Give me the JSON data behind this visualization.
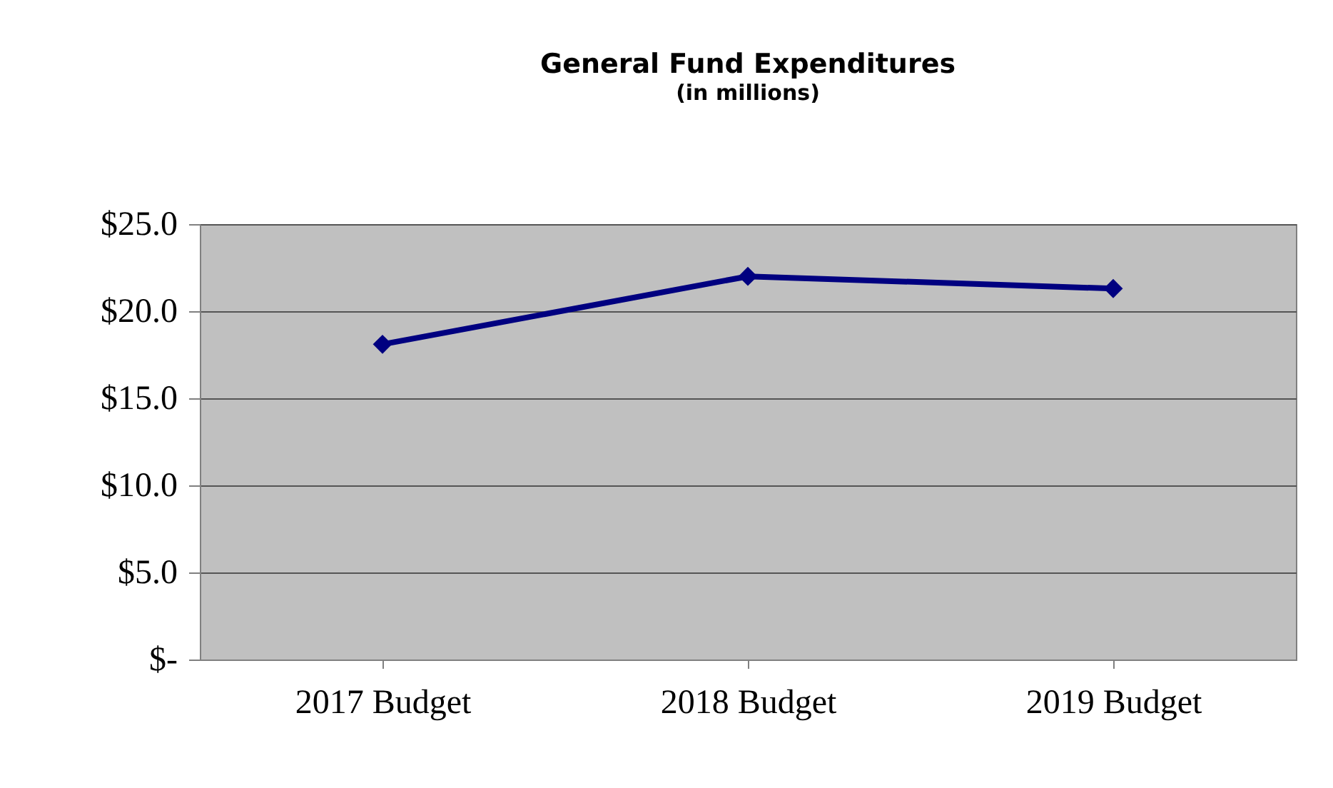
{
  "chart_data": {
    "type": "line",
    "title": "General Fund Expenditures",
    "subtitle": "(in millions)",
    "categories": [
      "2017 Budget",
      "2018 Budget",
      "2019 Budget"
    ],
    "series": [
      {
        "color": "#000080",
        "values": [
          18.1,
          22.0,
          21.3
        ]
      }
    ],
    "ylim": [
      0,
      25
    ],
    "yticks": [
      {
        "value": 0,
        "label": "$-"
      },
      {
        "value": 5,
        "label": "$5.0"
      },
      {
        "value": 10,
        "label": "$10.0"
      },
      {
        "value": 15,
        "label": "$15.0"
      },
      {
        "value": 20,
        "label": "$20.0"
      },
      {
        "value": 25,
        "label": "$25.0"
      }
    ],
    "grid": "y",
    "marker": "diamond",
    "line_style": "solid"
  }
}
